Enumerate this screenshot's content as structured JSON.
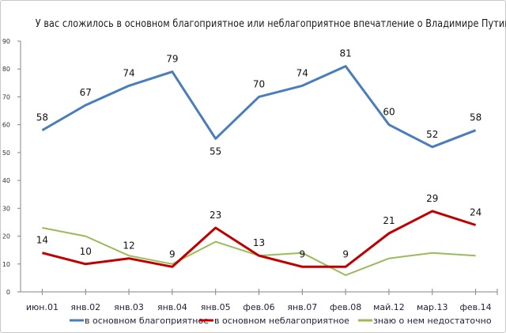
{
  "chart_data": {
    "type": "line",
    "title": "У вас сложилось в основном благоприятное или неблагоприятное впечатление о Владимире Путине?",
    "xlabel": "",
    "ylabel": "",
    "ylim": [
      0,
      90
    ],
    "yticks": [
      0,
      10,
      20,
      30,
      40,
      50,
      60,
      70,
      80,
      90
    ],
    "grid": false,
    "legend_position": "bottom",
    "categories": [
      "июн.01",
      "янв.02",
      "янв.03",
      "янв.04",
      "янв.05",
      "фев.06",
      "янв.07",
      "фев.08",
      "май.12",
      "мар.13",
      "фев.14"
    ],
    "series": [
      {
        "name": "в основном благоприятное",
        "color": "#4a7ebb",
        "values": [
          58,
          67,
          74,
          79,
          55,
          70,
          74,
          81,
          60,
          52,
          58
        ],
        "labels_shown": true
      },
      {
        "name": "в основном неблагоприятное",
        "color": "#c00000",
        "values": [
          14,
          10,
          12,
          9,
          23,
          13,
          9,
          9,
          21,
          29,
          24
        ],
        "labels_shown": true
      },
      {
        "name": "знаю о нем недостаточно",
        "color": "#9bbb59",
        "values": [
          23,
          20,
          13,
          10,
          18,
          13,
          14,
          6,
          12,
          14,
          13
        ],
        "labels_shown": false
      }
    ]
  }
}
